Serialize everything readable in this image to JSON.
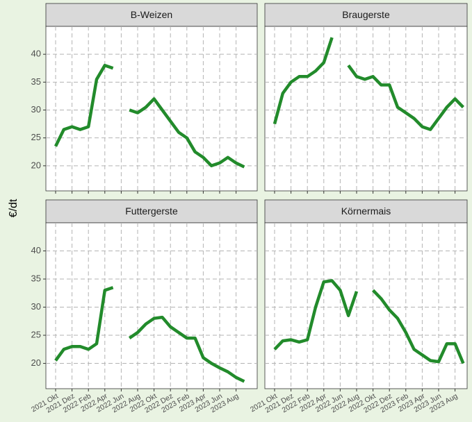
{
  "y_label": "€/dt",
  "categories": [
    "2021 Okt",
    null,
    "2021 Dez",
    null,
    "2022 Feb",
    null,
    "2022 Apr",
    null,
    "2022 Jun",
    null,
    "2022 Aug",
    null,
    "2022 Okt",
    null,
    "2022 Dez",
    null,
    "2023 Feb",
    null,
    "2023 Apr",
    null,
    "2023 Jun",
    null,
    "2023 Aug",
    null
  ],
  "ylim": [
    15.5,
    45
  ],
  "yticks": [
    20,
    25,
    30,
    35,
    40
  ],
  "grid": true,
  "color": "#228b2b",
  "chart_data": [
    {
      "type": "line",
      "title": "B-Weizen",
      "values": [
        23.5,
        26.5,
        27,
        26.5,
        27,
        35.5,
        38,
        37.5,
        null,
        30,
        29.5,
        30.5,
        32,
        30,
        28,
        26,
        25,
        22.5,
        21.5,
        20,
        20.5,
        21.5,
        20.5,
        19.8
      ]
    },
    {
      "type": "line",
      "title": "Braugerste",
      "values": [
        27.5,
        33,
        35,
        36,
        36,
        37,
        38.5,
        43,
        null,
        38,
        36,
        35.5,
        36,
        34.5,
        34.5,
        30.5,
        29.5,
        28.5,
        27,
        26.5,
        28.5,
        30.5,
        32,
        30.5
      ]
    },
    {
      "type": "line",
      "title": "Futtergerste",
      "values": [
        20.5,
        22.5,
        23,
        23,
        22.5,
        23.5,
        33,
        33.5,
        null,
        24.5,
        25.5,
        27,
        28,
        28.2,
        26.5,
        25.5,
        24.5,
        24.5,
        21,
        20,
        19.2,
        18.5,
        17.5,
        16.8
      ]
    },
    {
      "type": "line",
      "title": "Körnermais",
      "values": [
        22.5,
        24,
        24.2,
        23.8,
        24.2,
        30,
        34.5,
        34.7,
        33,
        28.5,
        32.8,
        null,
        33,
        31.5,
        29.5,
        28,
        25.5,
        22.5,
        21.5,
        20.5,
        20.3,
        23.5,
        23.5,
        20
      ]
    }
  ]
}
